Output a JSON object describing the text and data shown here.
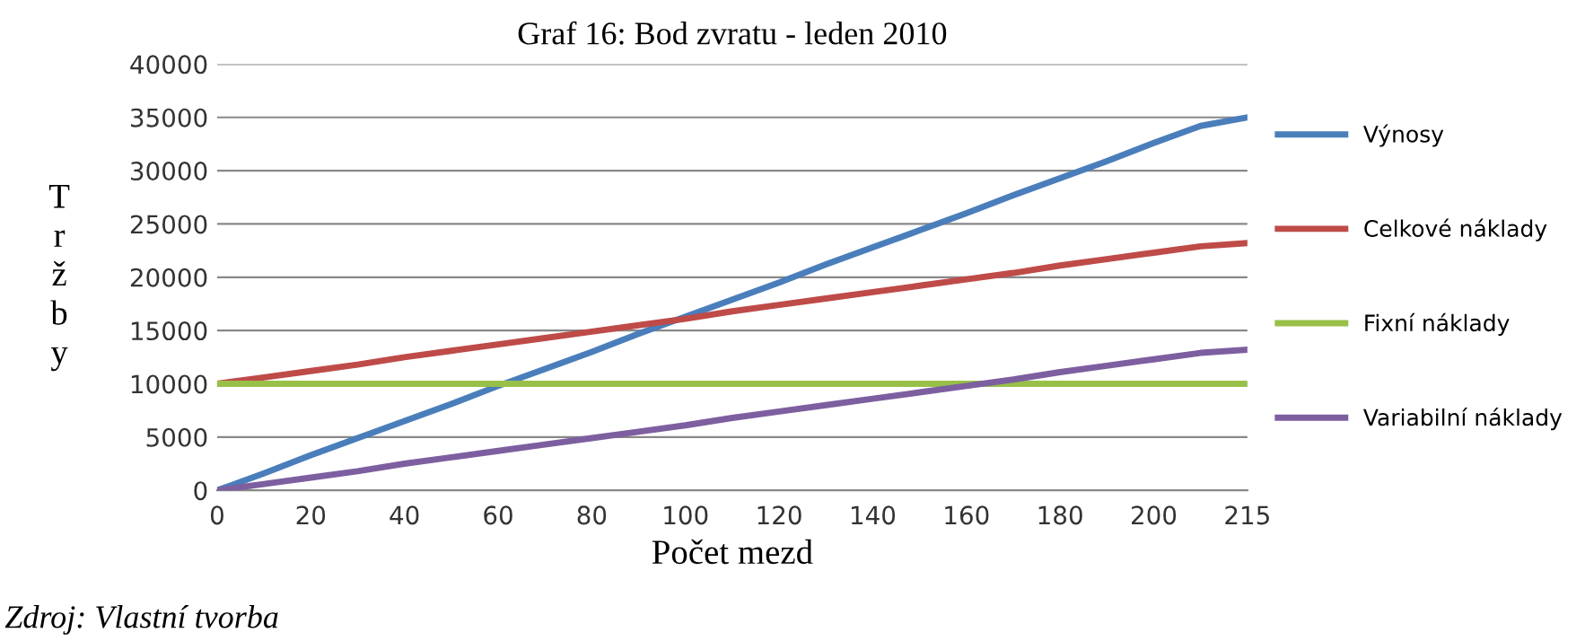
{
  "chart_data": {
    "type": "line",
    "title": "Graf 16: Bod zvratu - leden 2010",
    "xlabel": "Počet mezd",
    "ylabel": "Tržby",
    "categories": [
      "0",
      null,
      "20",
      null,
      "40",
      null,
      "60",
      null,
      "80",
      null,
      "100",
      null,
      "120",
      null,
      "140",
      null,
      "160",
      null,
      "180",
      null,
      "200",
      null,
      "215"
    ],
    "series": [
      {
        "name": "Výnosy",
        "color": "#4a7ebb",
        "values": [
          0,
          1600,
          3300,
          4900,
          6500,
          8100,
          9800,
          11400,
          13000,
          14700,
          16300,
          17900,
          19500,
          21200,
          22800,
          24400,
          26000,
          27700,
          29300,
          30900,
          32600,
          34200,
          35000
        ]
      },
      {
        "name": "Celkové náklady",
        "color": "#be4b48",
        "values": [
          10000,
          10600,
          11200,
          11800,
          12500,
          13100,
          13700,
          14300,
          14900,
          15500,
          16100,
          16800,
          17400,
          18000,
          18600,
          19200,
          19800,
          20400,
          21100,
          21700,
          22300,
          22900,
          23200
        ]
      },
      {
        "name": "Fixní náklady",
        "color": "#98c048",
        "values": [
          10000,
          10000,
          10000,
          10000,
          10000,
          10000,
          10000,
          10000,
          10000,
          10000,
          10000,
          10000,
          10000,
          10000,
          10000,
          10000,
          10000,
          10000,
          10000,
          10000,
          10000,
          10000,
          10000
        ]
      },
      {
        "name": "Variabilní náklady",
        "color": "#7d5fa0",
        "values": [
          0,
          600,
          1200,
          1800,
          2500,
          3100,
          3700,
          4300,
          4900,
          5500,
          6100,
          6800,
          7400,
          8000,
          8600,
          9200,
          9800,
          10400,
          11100,
          11700,
          12300,
          12900,
          13200
        ]
      }
    ],
    "ylim": [
      0,
      40000
    ],
    "yticks": [
      0,
      5000,
      10000,
      15000,
      20000,
      25000,
      30000,
      35000,
      40000
    ],
    "grid": "y",
    "legend": "right",
    "marker": "none",
    "line_style": "solid",
    "annotations": [
      "Zdroj: Vlastní tvorba"
    ]
  }
}
